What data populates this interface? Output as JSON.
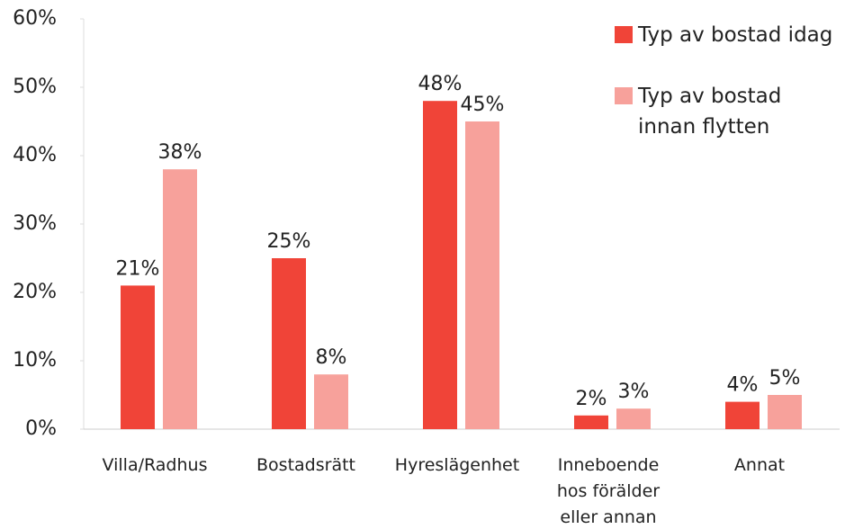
{
  "chart_data": {
    "type": "bar",
    "categories": [
      "Villa/Radhus",
      "Bostadsrätt",
      "Hyreslägenhet",
      "Inneboende hos förälder eller annan",
      "Annat"
    ],
    "series": [
      {
        "name": "Typ av bostad idag",
        "color": "#f04438",
        "values": [
          21,
          25,
          48,
          2,
          4
        ],
        "value_labels": [
          "21%",
          "25%",
          "48%",
          "2%",
          "4%"
        ]
      },
      {
        "name": "Typ av bostad innan flytten",
        "color": "#f7a19b",
        "values": [
          38,
          8,
          45,
          3,
          5
        ],
        "value_labels": [
          "38%",
          "8%",
          "45%",
          "3%",
          "5%"
        ]
      }
    ],
    "ylim": [
      0,
      60
    ],
    "yticks": [
      {
        "value": 0,
        "label": "0%"
      },
      {
        "value": 10,
        "label": "10%"
      },
      {
        "value": 20,
        "label": "20%"
      },
      {
        "value": 30,
        "label": "30%"
      },
      {
        "value": 40,
        "label": "40%"
      },
      {
        "value": 50,
        "label": "50%"
      },
      {
        "value": 60,
        "label": "60%"
      }
    ],
    "legend": "top-right"
  }
}
